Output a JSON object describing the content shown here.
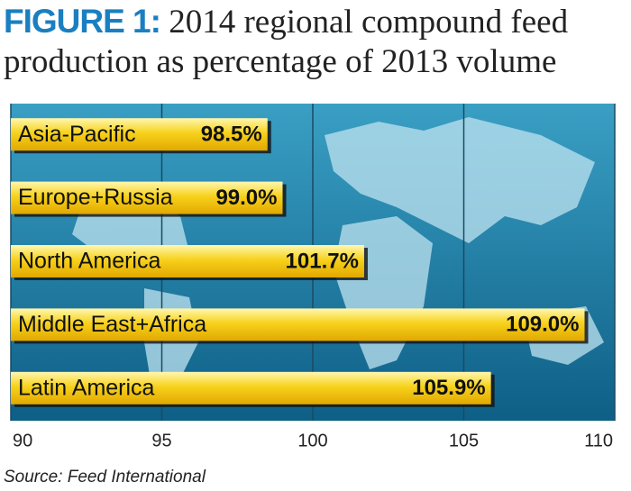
{
  "chart_data": {
    "type": "bar",
    "orientation": "horizontal",
    "title_label": "FIGURE 1:",
    "title": "2014 regional compound feed production as percentage of 2013 volume",
    "categories": [
      "Asia-Pacific",
      "Europe+Russia",
      "North America",
      "Middle East+Africa",
      "Latin America"
    ],
    "values": [
      98.5,
      99.0,
      101.7,
      109.0,
      105.9
    ],
    "value_labels": [
      "98.5%",
      "99.0%",
      "101.7%",
      "109.0%",
      "105.9%"
    ],
    "color": "#f7d21c",
    "xlim": [
      90,
      110
    ],
    "xticks": [
      90,
      95,
      100,
      105,
      110
    ],
    "grid": true,
    "source": "Source: Feed International"
  }
}
